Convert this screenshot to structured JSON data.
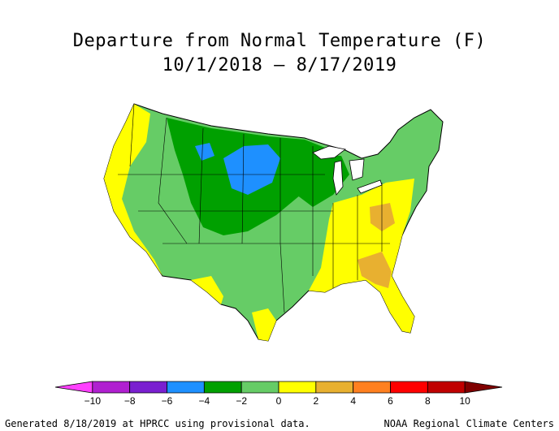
{
  "title": {
    "line1": "Departure from Normal Temperature (F)",
    "line2": "10/1/2018 – 8/17/2019"
  },
  "legend": {
    "ticks": [
      "−10",
      "−8",
      "−6",
      "−4",
      "−2",
      "0",
      "2",
      "4",
      "6",
      "8",
      "10"
    ],
    "colors": [
      "#ff40ff",
      "#b020d0",
      "#7a20d0",
      "#1e90ff",
      "#00a000",
      "#66cc66",
      "#ffff00",
      "#e8b030",
      "#ff8020",
      "#ff0000",
      "#c00000",
      "#800000"
    ]
  },
  "footer": {
    "left": "Generated 8/18/2019 at HPRCC using provisional data.",
    "right": "NOAA Regional Climate Centers"
  },
  "map": {
    "colors": {
      "green_dark": "#00a000",
      "green_light": "#66cc66",
      "yellow": "#ffff00",
      "orange_light": "#e8b030",
      "blue": "#1e90ff"
    }
  }
}
